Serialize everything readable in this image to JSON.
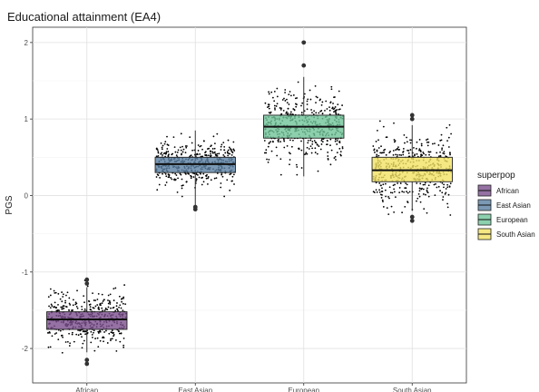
{
  "chart_data": {
    "type": "boxplot",
    "title": "Educational attainment (EA4)",
    "xlabel": "",
    "ylabel": "PGS",
    "ylim": [
      -2.45,
      2.2
    ],
    "yticks": [
      -2,
      -1,
      0,
      1,
      2
    ],
    "categories": [
      "African",
      "East Asian",
      "European",
      "South Asian"
    ],
    "legend": {
      "title": "superpop",
      "position": "right"
    },
    "grid": true,
    "series": [
      {
        "name": "African",
        "color": "#7a4f8c",
        "whisker_low": -2.05,
        "q1": -1.75,
        "median": -1.62,
        "q3": -1.52,
        "whisker_high": -1.2,
        "outliers": [
          -2.2,
          -2.15,
          -1.1,
          -1.15
        ],
        "points_range": [
          -2.2,
          -1.1
        ]
      },
      {
        "name": "East Asian",
        "color": "#5a7fa3",
        "whisker_low": -0.15,
        "q1": 0.3,
        "median": 0.41,
        "q3": 0.5,
        "whisker_high": 0.85,
        "outliers": [
          -0.15,
          -0.18
        ],
        "points_range": [
          -0.18,
          0.86
        ]
      },
      {
        "name": "European",
        "color": "#6fc49a",
        "whisker_low": 0.25,
        "q1": 0.75,
        "median": 0.9,
        "q3": 1.05,
        "whisker_high": 1.55,
        "outliers": [
          1.7,
          2.0
        ],
        "points_range": [
          0.25,
          2.0
        ]
      },
      {
        "name": "South Asian",
        "color": "#f2e264",
        "whisker_low": -0.2,
        "q1": 0.18,
        "median": 0.33,
        "q3": 0.5,
        "whisker_high": 0.92,
        "outliers": [
          -0.28,
          -0.33,
          1.0,
          1.05
        ],
        "points_range": [
          -0.33,
          1.05
        ]
      }
    ]
  }
}
